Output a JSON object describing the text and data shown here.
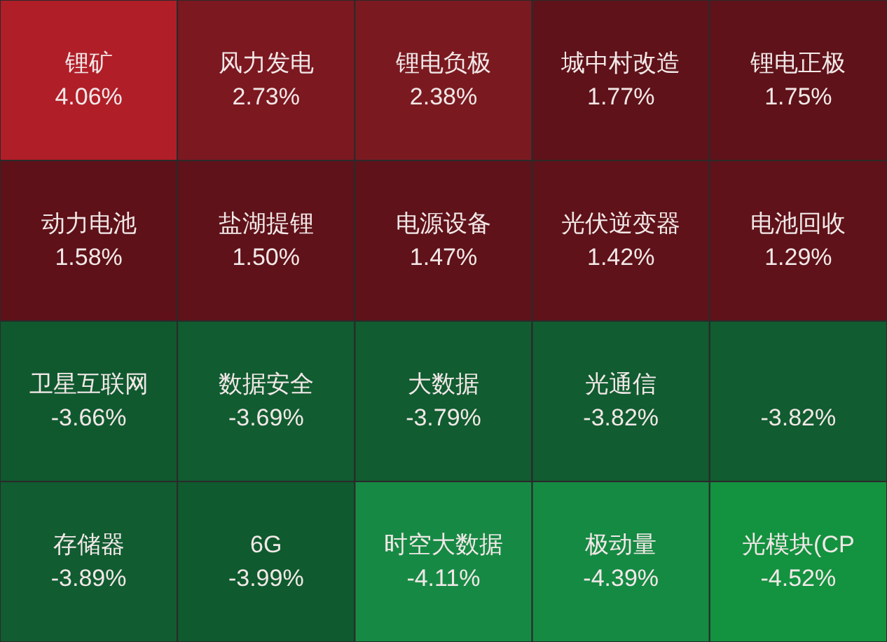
{
  "chart_data": {
    "type": "other",
    "categories": [
      "锂矿",
      "风力发电",
      "锂电负极",
      "城中村改造",
      "锂电正极",
      "动力电池",
      "盐湖提锂",
      "电源设备",
      "光伏逆变器",
      "电池回收",
      "卫星互联网",
      "数据安全",
      "大数据",
      "光通信",
      null,
      "存储器",
      "6G",
      "时空大数据",
      "极动量",
      "光模块(CP"
    ],
    "values": [
      4.06,
      2.73,
      2.38,
      1.77,
      1.75,
      1.58,
      1.5,
      1.47,
      1.42,
      1.29,
      -3.66,
      -3.69,
      -3.79,
      -3.82,
      -3.82,
      -3.89,
      -3.99,
      -4.11,
      -4.39,
      -4.52
    ],
    "value_labels": [
      "4.06%",
      "2.73%",
      "2.38%",
      "1.77%",
      "1.75%",
      "1.58%",
      "1.50%",
      "1.47%",
      "1.42%",
      "1.29%",
      "-3.66%",
      "-3.69%",
      "-3.79%",
      "-3.82%",
      "-3.82%",
      "-3.89%",
      "-3.99%",
      "-4.11%",
      "-4.39%",
      "-4.52%"
    ],
    "colors": [
      "#b01e28",
      "#7c1820",
      "#7a1a20",
      "#5f1219",
      "#5f1219",
      "#5e1118",
      "#5f1219",
      "#5f1219",
      "#5f1219",
      "#5f1219",
      "#10592f",
      "#115c30",
      "#115c30",
      "#115c30",
      "#115c30",
      "#115c31",
      "#0f5a2e",
      "#168a44",
      "#158a43",
      "#13923f"
    ]
  }
}
